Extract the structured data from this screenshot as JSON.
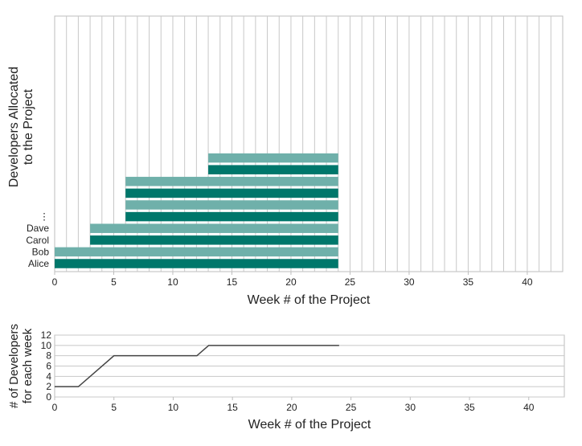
{
  "chart_data": [
    {
      "type": "bar",
      "orientation": "horizontal",
      "xlabel": "Week # of the Project",
      "ylabel": "Developers Allocated\nto the Project",
      "xlim": [
        0,
        43
      ],
      "xticks": [
        0,
        5,
        10,
        15,
        20,
        25,
        30,
        35,
        40
      ],
      "grid": "vertical lines every week",
      "row_labels": [
        "Alice",
        "Bob",
        "Carol",
        "Dave",
        "⋮"
      ],
      "bars": [
        {
          "row": "Alice",
          "start": 0,
          "end": 24
        },
        {
          "row": "Bob",
          "start": 0,
          "end": 24
        },
        {
          "row": "Carol",
          "start": 3,
          "end": 24
        },
        {
          "row": "Dave",
          "start": 3,
          "end": 24
        },
        {
          "row": "",
          "start": 6,
          "end": 24
        },
        {
          "row": "",
          "start": 6,
          "end": 24
        },
        {
          "row": "",
          "start": 6,
          "end": 24
        },
        {
          "row": "",
          "start": 6,
          "end": 24
        },
        {
          "row": "",
          "start": 13,
          "end": 24
        },
        {
          "row": "",
          "start": 13,
          "end": 24
        }
      ],
      "colors": {
        "dark": "#00776b",
        "light": "#6fb0aa"
      }
    },
    {
      "type": "line",
      "xlabel": "Week # of the Project",
      "ylabel": "# of Developers\nfor each week",
      "xlim": [
        0,
        43
      ],
      "ylim": [
        0,
        12
      ],
      "xticks": [
        0,
        5,
        10,
        15,
        20,
        25,
        30,
        35,
        40
      ],
      "yticks": [
        0,
        2,
        4,
        6,
        8,
        10,
        12
      ],
      "grid": "horizontal",
      "series": [
        {
          "x": [
            0,
            2,
            5,
            12,
            13,
            24
          ],
          "y": [
            2,
            2,
            8,
            8,
            10,
            10
          ],
          "color": "#444444"
        }
      ]
    }
  ]
}
